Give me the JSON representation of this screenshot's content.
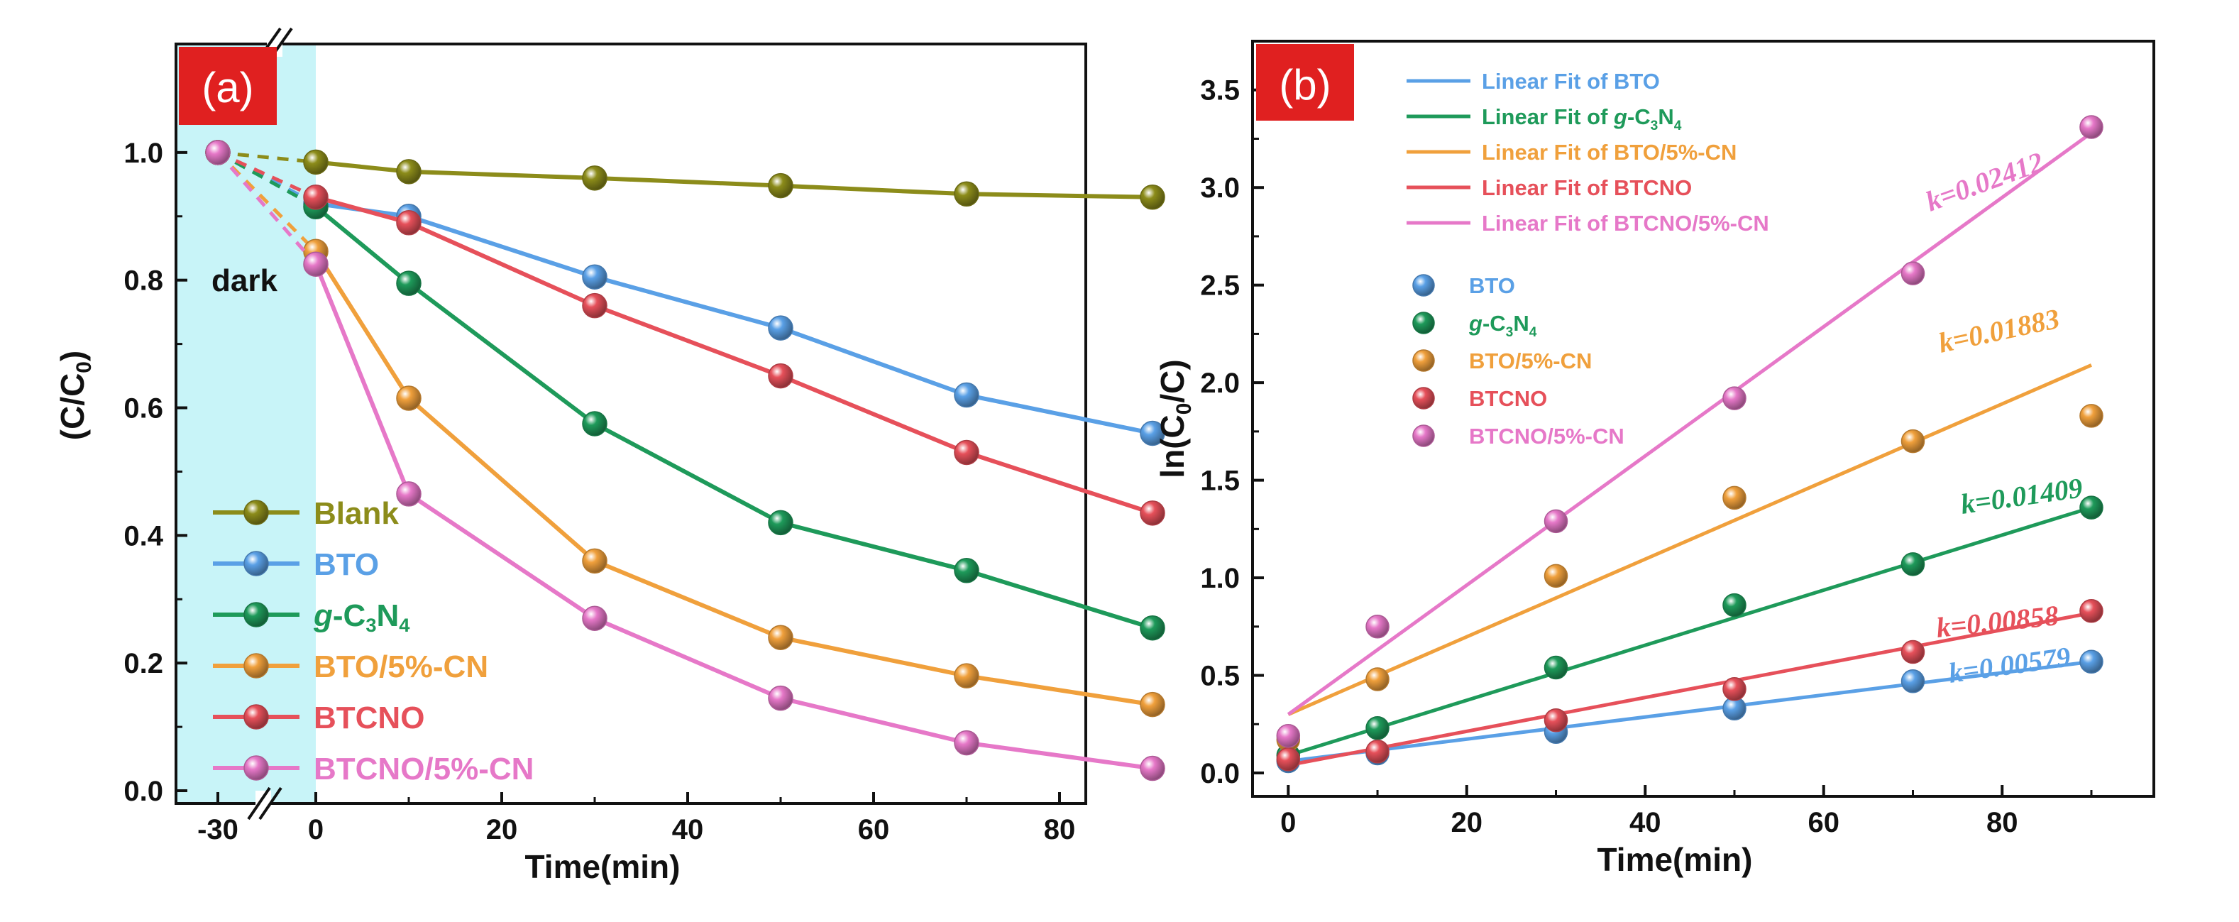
{
  "chart_data": [
    {
      "panel": "(a)",
      "type": "line",
      "xlabel": "Time(min)",
      "ylabel": "(C/C0)",
      "dark_label": "dark",
      "x_ticks": [
        -30,
        0,
        20,
        40,
        60,
        80
      ],
      "y_ticks": [
        "0.0",
        "0.2",
        "0.4",
        "0.6",
        "0.8",
        "1.0"
      ],
      "x": [
        -30,
        0,
        10,
        30,
        50,
        70,
        90
      ],
      "ylim": [
        -0.02,
        1.17
      ],
      "series": [
        {
          "name": "Blank",
          "color": "#8C8C1A",
          "values": [
            1.0,
            0.985,
            0.97,
            0.96,
            0.948,
            0.935,
            0.93
          ]
        },
        {
          "name": "BTO",
          "color": "#5AA0E6",
          "values": [
            1.0,
            0.92,
            0.9,
            0.805,
            0.725,
            0.62,
            0.56
          ]
        },
        {
          "name": "g-C3N4",
          "color": "#1E9A5A",
          "values": [
            1.0,
            0.915,
            0.795,
            0.575,
            0.42,
            0.345,
            0.255
          ]
        },
        {
          "name": "BTO/5%-CN",
          "color": "#F0A03C",
          "values": [
            1.0,
            0.845,
            0.615,
            0.36,
            0.24,
            0.18,
            0.135
          ]
        },
        {
          "name": "BTCNO",
          "color": "#E6505A",
          "values": [
            1.0,
            0.93,
            0.89,
            0.76,
            0.65,
            0.53,
            0.435
          ]
        },
        {
          "name": "BTCNO/5%-CN",
          "color": "#E678C8",
          "values": [
            1.0,
            0.825,
            0.465,
            0.27,
            0.145,
            0.075,
            0.035
          ]
        }
      ],
      "legend": [
        "Blank",
        "BTO",
        "g-C3N4",
        "BTO/5%-CN",
        "BTCNO",
        "BTCNO/5%-CN"
      ]
    },
    {
      "panel": "(b)",
      "type": "scatter",
      "xlabel": "Time(min)",
      "ylabel": "ln(C0/C)",
      "x_ticks": [
        "0",
        "20",
        "40",
        "60",
        "80"
      ],
      "y_ticks": [
        "0.0",
        "0.5",
        "1.0",
        "1.5",
        "2.0",
        "2.5",
        "3.0",
        "3.5"
      ],
      "x": [
        0,
        10,
        30,
        50,
        70,
        90
      ],
      "xlim": [
        -4,
        97
      ],
      "ylim": [
        -0.12,
        3.75
      ],
      "series": [
        {
          "name": "BTO",
          "color": "#5AA0E6",
          "values": [
            0.06,
            0.1,
            0.21,
            0.33,
            0.47,
            0.57
          ],
          "fit_start": 0.06,
          "fit_end": 0.57,
          "k": "k=0.00579"
        },
        {
          "name": "g-C3N4",
          "color": "#1E9A5A",
          "values": [
            0.09,
            0.23,
            0.54,
            0.86,
            1.07,
            1.36
          ],
          "fit_start": 0.09,
          "fit_end": 1.36,
          "k": "k=0.01409"
        },
        {
          "name": "BTO/5%-CN",
          "color": "#F0A03C",
          "values": [
            0.17,
            0.48,
            1.01,
            1.41,
            1.7,
            1.83
          ],
          "fit_start": 0.3,
          "fit_end": 2.09,
          "k": "k=0.01883"
        },
        {
          "name": "BTCNO",
          "color": "#E6505A",
          "values": [
            0.07,
            0.11,
            0.27,
            0.43,
            0.62,
            0.83
          ],
          "fit_start": 0.04,
          "fit_end": 0.82,
          "k": "k=0.00858"
        },
        {
          "name": "BTCNO/5%-CN",
          "color": "#E678C8",
          "values": [
            0.19,
            0.75,
            1.29,
            1.92,
            2.56,
            3.31
          ],
          "fit_start": 0.3,
          "fit_end": 3.28,
          "k": "k=0.02412"
        }
      ],
      "legend_fits": [
        "Linear Fit of BTO",
        "Linear Fit of g-C3N4",
        "Linear Fit of BTO/5%-CN",
        "Linear Fit of BTCNO",
        "Linear Fit of BTCNO/5%-CN"
      ],
      "legend_points": [
        "BTO",
        "g-C3N4",
        "BTO/5%-CN",
        "BTCNO",
        "BTCNO/5%-CN"
      ]
    }
  ]
}
